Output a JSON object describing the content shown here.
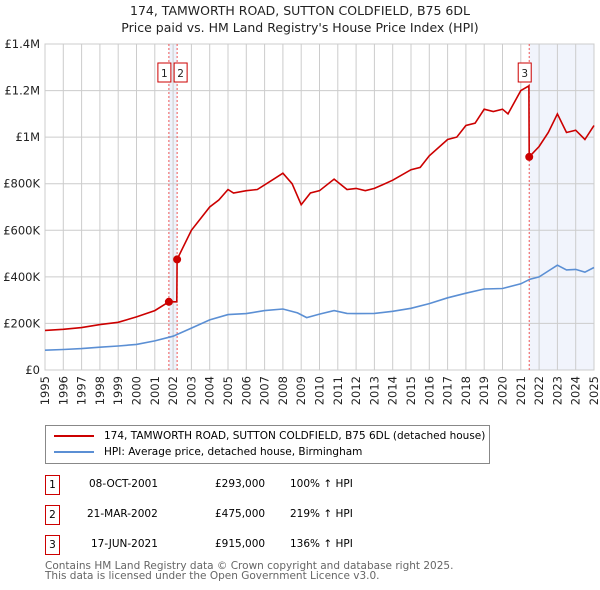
{
  "title": {
    "line1": "174, TAMWORTH ROAD, SUTTON COLDFIELD, B75 6DL",
    "line2": "Price paid vs. HM Land Registry's House Price Index (HPI)"
  },
  "chart_data": {
    "type": "line",
    "title": "174, TAMWORTH ROAD, SUTTON COLDFIELD, B75 6DL — Price paid vs. HM Land Registry's House Price Index (HPI)",
    "xlabel": "",
    "ylabel": "",
    "xlim": [
      1995,
      2025
    ],
    "ylim": [
      0,
      1400000
    ],
    "yticks": [
      0,
      200000,
      400000,
      600000,
      800000,
      1000000,
      1200000,
      1400000
    ],
    "ytick_labels": [
      "£0",
      "£200K",
      "£400K",
      "£600K",
      "£800K",
      "£1M",
      "£1.2M",
      "£1.4M"
    ],
    "xticks": [
      "1995",
      "1996",
      "1997",
      "1998",
      "1999",
      "2000",
      "2001",
      "2002",
      "2003",
      "2004",
      "2005",
      "2006",
      "2007",
      "2008",
      "2009",
      "2010",
      "2011",
      "2012",
      "2013",
      "2014",
      "2015",
      "2016",
      "2017",
      "2018",
      "2019",
      "2020",
      "2021",
      "2022",
      "2023",
      "2024",
      "2025"
    ],
    "grid": true,
    "legend_placement": "below",
    "series": [
      {
        "name": "174, TAMWORTH ROAD, SUTTON COLDFIELD, B75 6DL (detached house)",
        "color": "#cc0000",
        "x": [
          1995,
          1996,
          1997,
          1998,
          1999,
          2000,
          2001,
          2001.77,
          2002.2,
          2002.22,
          2003,
          2004,
          2004.5,
          2005,
          2005.3,
          2006,
          2006.6,
          2007.5,
          2008,
          2008.5,
          2009,
          2009.5,
          2010,
          2010.8,
          2011.5,
          2012,
          2012.5,
          2013,
          2014,
          2015,
          2015.5,
          2016,
          2017,
          2017.5,
          2018,
          2018.5,
          2019,
          2019.5,
          2020,
          2020.3,
          2021,
          2021.44,
          2021.46,
          2022,
          2022.5,
          2023,
          2023.5,
          2024,
          2024.5,
          2025
        ],
        "y": [
          170000,
          175000,
          182000,
          195000,
          205000,
          228000,
          255000,
          293000,
          293000,
          475000,
          600000,
          700000,
          730000,
          775000,
          760000,
          770000,
          775000,
          820000,
          845000,
          800000,
          710000,
          760000,
          770000,
          820000,
          775000,
          780000,
          770000,
          780000,
          815000,
          860000,
          870000,
          920000,
          990000,
          1000000,
          1050000,
          1060000,
          1120000,
          1110000,
          1120000,
          1100000,
          1200000,
          1220000,
          915000,
          960000,
          1020000,
          1100000,
          1020000,
          1030000,
          990000,
          1050000
        ]
      },
      {
        "name": "HPI: Average price, detached house, Birmingham",
        "color": "#5b8fd4",
        "x": [
          1995,
          1996,
          1997,
          1998,
          1999,
          2000,
          2001,
          2002,
          2003,
          2004,
          2005,
          2006,
          2007,
          2008,
          2008.8,
          2009.3,
          2010,
          2010.8,
          2011.5,
          2012,
          2013,
          2014,
          2015,
          2016,
          2017,
          2018,
          2019,
          2020,
          2021,
          2021.5,
          2022,
          2022.5,
          2023,
          2023.5,
          2024,
          2024.5,
          2025
        ],
        "y": [
          85000,
          88000,
          92000,
          98000,
          103000,
          110000,
          125000,
          145000,
          180000,
          215000,
          238000,
          242000,
          255000,
          262000,
          245000,
          225000,
          240000,
          255000,
          243000,
          242000,
          243000,
          252000,
          265000,
          285000,
          310000,
          330000,
          348000,
          350000,
          370000,
          390000,
          400000,
          425000,
          450000,
          430000,
          432000,
          420000,
          440000
        ]
      }
    ],
    "sales": [
      {
        "label": "1",
        "x": 2001.77,
        "y": 293000
      },
      {
        "label": "2",
        "x": 2002.22,
        "y": 475000
      },
      {
        "label": "3",
        "x": 2021.46,
        "y": 915000
      }
    ]
  },
  "legend": {
    "property": "174, TAMWORTH ROAD, SUTTON COLDFIELD, B75 6DL (detached house)",
    "hpi": "HPI: Average price, detached house, Birmingham"
  },
  "transactions": [
    {
      "num": "1",
      "date": "08-OCT-2001",
      "price": "£293,000",
      "hpi": "100% ↑ HPI"
    },
    {
      "num": "2",
      "date": "21-MAR-2002",
      "price": "£475,000",
      "hpi": "219% ↑ HPI"
    },
    {
      "num": "3",
      "date": "17-JUN-2021",
      "price": "£915,000",
      "hpi": "136% ↑ HPI"
    }
  ],
  "footer": {
    "line1": "Contains HM Land Registry data © Crown copyright and database right 2025.",
    "line2": "This data is licensed under the Open Government Licence v3.0."
  }
}
